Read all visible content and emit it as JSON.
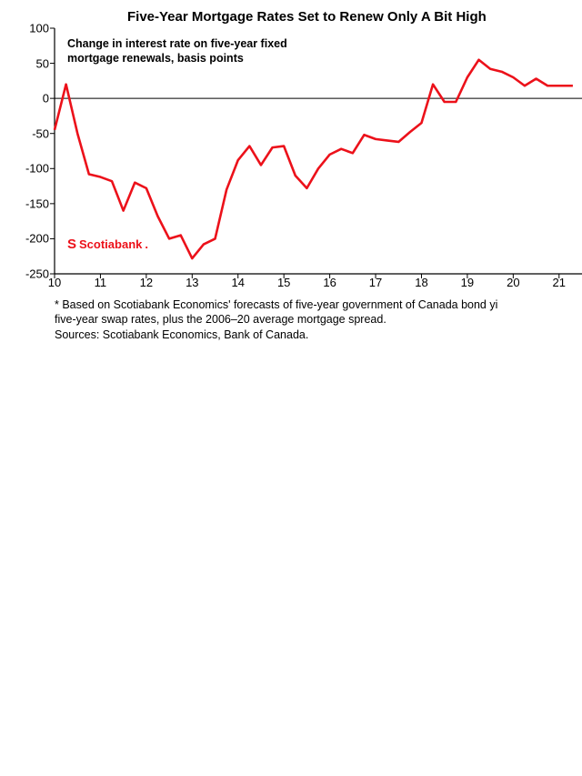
{
  "chart": {
    "type": "line",
    "title": "Five-Year Mortgage Rates Set to Renew Only A Bit High",
    "inner_label_line1": "Change in interest rate on five-year fixed",
    "inner_label_line2": "mortgage renewals, basis points",
    "brand_text": "Scotiabank",
    "footnote_line1": "* Based on Scotiabank Economics' forecasts of five-year government of Canada bond yi",
    "footnote_line2": "five-year swap rates, plus the 2006–20 average mortgage spread.",
    "footnote_line3": "Sources: Scotiabank Economics, Bank of Canada.",
    "ylim": [
      -250,
      100
    ],
    "ytick_step": 50,
    "yticks": [
      100,
      50,
      0,
      -50,
      -100,
      -150,
      -200,
      -250
    ],
    "xlim": [
      10,
      21.5
    ],
    "xticks": [
      10,
      11,
      12,
      13,
      14,
      15,
      16,
      17,
      18,
      19,
      20,
      21
    ],
    "line_color": "#ec111a",
    "line_width": 2.6,
    "axis_color": "#000000",
    "background_color": "#ffffff",
    "title_fontsize": 15,
    "label_fontsize": 12.5,
    "tick_fontsize": 13,
    "series": [
      {
        "x": 10.0,
        "y": -45
      },
      {
        "x": 10.25,
        "y": 20
      },
      {
        "x": 10.5,
        "y": -50
      },
      {
        "x": 10.75,
        "y": -108
      },
      {
        "x": 11.0,
        "y": -112
      },
      {
        "x": 11.25,
        "y": -118
      },
      {
        "x": 11.5,
        "y": -160
      },
      {
        "x": 11.75,
        "y": -120
      },
      {
        "x": 12.0,
        "y": -128
      },
      {
        "x": 12.25,
        "y": -168
      },
      {
        "x": 12.5,
        "y": -200
      },
      {
        "x": 12.75,
        "y": -195
      },
      {
        "x": 13.0,
        "y": -228
      },
      {
        "x": 13.25,
        "y": -208
      },
      {
        "x": 13.5,
        "y": -200
      },
      {
        "x": 13.75,
        "y": -130
      },
      {
        "x": 14.0,
        "y": -88
      },
      {
        "x": 14.25,
        "y": -68
      },
      {
        "x": 14.5,
        "y": -95
      },
      {
        "x": 14.75,
        "y": -70
      },
      {
        "x": 15.0,
        "y": -68
      },
      {
        "x": 15.25,
        "y": -110
      },
      {
        "x": 15.5,
        "y": -128
      },
      {
        "x": 15.75,
        "y": -100
      },
      {
        "x": 16.0,
        "y": -80
      },
      {
        "x": 16.25,
        "y": -72
      },
      {
        "x": 16.5,
        "y": -78
      },
      {
        "x": 16.75,
        "y": -52
      },
      {
        "x": 17.0,
        "y": -58
      },
      {
        "x": 17.25,
        "y": -60
      },
      {
        "x": 17.5,
        "y": -62
      },
      {
        "x": 17.75,
        "y": -48
      },
      {
        "x": 18.0,
        "y": -35
      },
      {
        "x": 18.25,
        "y": 20
      },
      {
        "x": 18.5,
        "y": -5
      },
      {
        "x": 18.75,
        "y": -5
      },
      {
        "x": 19.0,
        "y": 30
      },
      {
        "x": 19.25,
        "y": 55
      },
      {
        "x": 19.5,
        "y": 42
      },
      {
        "x": 19.75,
        "y": 38
      },
      {
        "x": 20.0,
        "y": 30
      },
      {
        "x": 20.25,
        "y": 18
      },
      {
        "x": 20.5,
        "y": 28
      },
      {
        "x": 20.75,
        "y": 18
      },
      {
        "x": 21.0,
        "y": 18
      },
      {
        "x": 21.3,
        "y": 18
      }
    ]
  }
}
